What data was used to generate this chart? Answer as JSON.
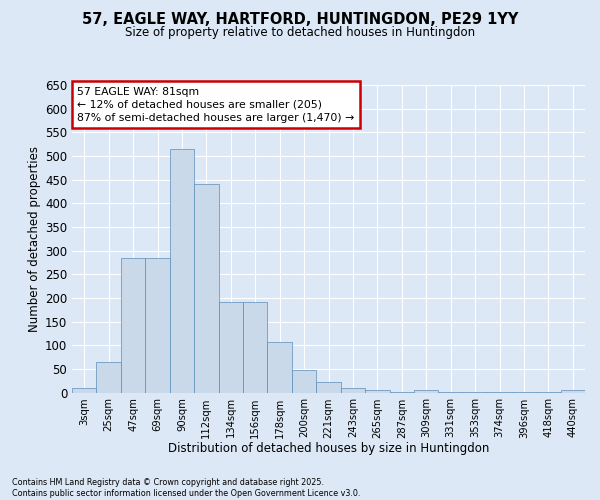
{
  "title": "57, EAGLE WAY, HARTFORD, HUNTINGDON, PE29 1YY",
  "subtitle": "Size of property relative to detached houses in Huntingdon",
  "xlabel": "Distribution of detached houses by size in Huntingdon",
  "ylabel": "Number of detached properties",
  "bin_labels": [
    "3sqm",
    "25sqm",
    "47sqm",
    "69sqm",
    "90sqm",
    "112sqm",
    "134sqm",
    "156sqm",
    "178sqm",
    "200sqm",
    "221sqm",
    "243sqm",
    "265sqm",
    "287sqm",
    "309sqm",
    "331sqm",
    "353sqm",
    "374sqm",
    "396sqm",
    "418sqm",
    "440sqm"
  ],
  "bar_values": [
    10,
    65,
    285,
    285,
    515,
    440,
    192,
    192,
    107,
    47,
    23,
    10,
    5,
    2,
    5,
    2,
    2,
    2,
    2,
    2,
    5
  ],
  "bar_color": "#cad9ea",
  "bar_edgecolor": "#5b8db8",
  "bg_color": "#dce8f5",
  "grid_color": "#ffffff",
  "ylim": [
    0,
    650
  ],
  "yticks": [
    0,
    50,
    100,
    150,
    200,
    250,
    300,
    350,
    400,
    450,
    500,
    550,
    600,
    650
  ],
  "annotation_line1": "57 EAGLE WAY: 81sqm",
  "annotation_line2": "← 12% of detached houses are smaller (205)",
  "annotation_line3": "87% of semi-detached houses are larger (1,470) →",
  "annotation_box_edgecolor": "#cc0000",
  "footer_line1": "Contains HM Land Registry data © Crown copyright and database right 2025.",
  "footer_line2": "Contains public sector information licensed under the Open Government Licence v3.0."
}
